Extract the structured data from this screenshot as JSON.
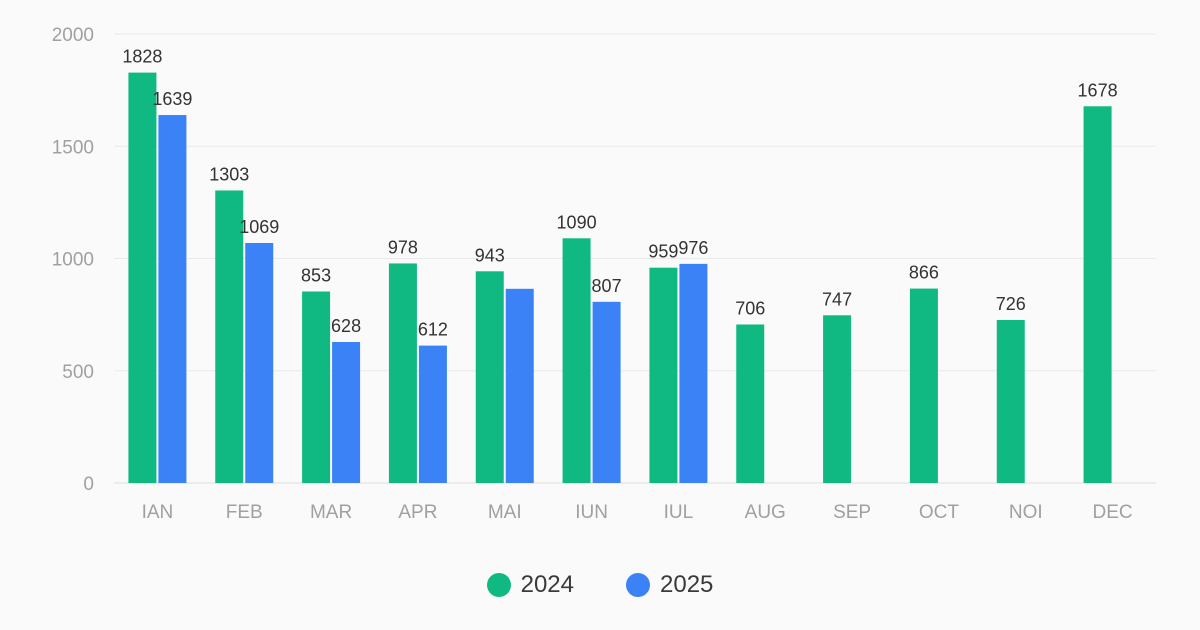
{
  "chart_data": {
    "type": "bar",
    "categories": [
      "IAN",
      "FEB",
      "MAR",
      "APR",
      "MAI",
      "IUN",
      "IUL",
      "AUG",
      "SEP",
      "OCT",
      "NOI",
      "DEC"
    ],
    "series": [
      {
        "name": "2024",
        "color": "#10b981",
        "values": [
          1828,
          1303,
          853,
          978,
          943,
          1090,
          959,
          706,
          747,
          866,
          726,
          1678
        ],
        "labels": [
          "1828",
          "1303",
          "853",
          "978",
          "943",
          "1090",
          "959",
          "706",
          "747",
          "866",
          "726",
          "1678"
        ]
      },
      {
        "name": "2025",
        "color": "#3b82f6",
        "values": [
          1639,
          1069,
          628,
          612,
          865,
          807,
          976,
          null,
          null,
          null,
          null,
          null
        ],
        "labels": [
          "1639",
          "1069",
          "628",
          "612",
          "",
          "807",
          "976",
          "",
          "",
          "",
          "",
          ""
        ]
      }
    ],
    "ylim": [
      0,
      2000
    ],
    "yticks": [
      "0",
      "500",
      "1000",
      "1500",
      "2000"
    ],
    "grid": true,
    "legend_position": "bottom-center"
  }
}
